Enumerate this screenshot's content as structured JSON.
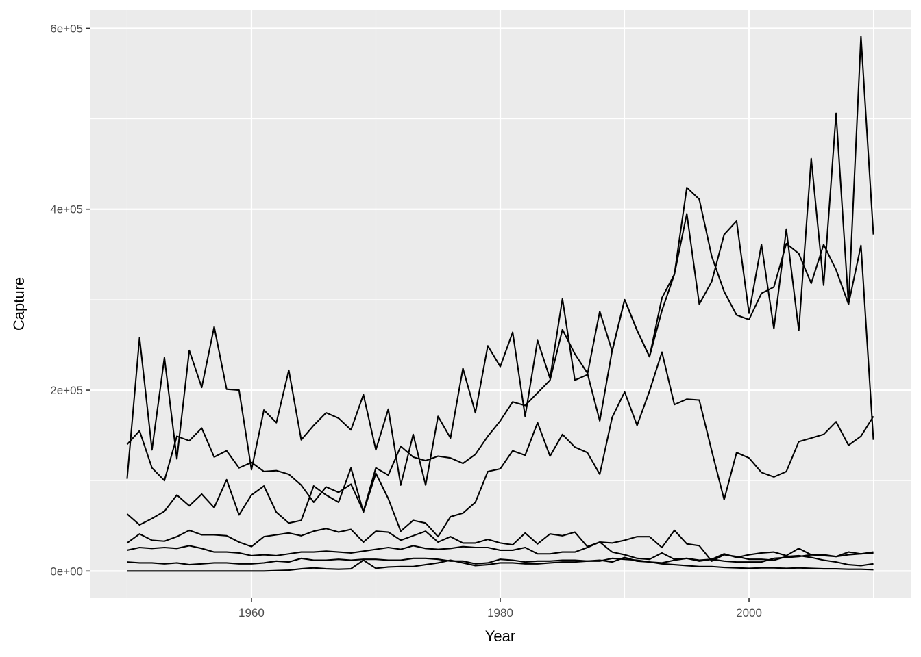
{
  "chart_data": {
    "type": "line",
    "title": "",
    "xlabel": "Year",
    "ylabel": "Capture",
    "xlim": [
      1947,
      2013
    ],
    "ylim": [
      -30000,
      620000
    ],
    "x_ticks": [
      {
        "value": 1960,
        "label": "1960"
      },
      {
        "value": 1980,
        "label": "1980"
      },
      {
        "value": 2000,
        "label": "2000"
      }
    ],
    "y_ticks": [
      {
        "value": 0,
        "label": "0e+00"
      },
      {
        "value": 200000,
        "label": "2e+05"
      },
      {
        "value": 400000,
        "label": "4e+05"
      },
      {
        "value": 600000,
        "label": "6e+05"
      }
    ],
    "grid": true,
    "legend": "none",
    "colors": {
      "panel": "#ebebeb",
      "grid": "#ffffff",
      "line": "#000000"
    },
    "x": [
      1950,
      1951,
      1952,
      1953,
      1954,
      1955,
      1956,
      1957,
      1958,
      1959,
      1960,
      1961,
      1962,
      1963,
      1964,
      1965,
      1966,
      1967,
      1968,
      1969,
      1970,
      1971,
      1972,
      1973,
      1974,
      1975,
      1976,
      1977,
      1978,
      1979,
      1980,
      1981,
      1982,
      1983,
      1984,
      1985,
      1986,
      1987,
      1988,
      1989,
      1990,
      1991,
      1992,
      1993,
      1994,
      1995,
      1996,
      1997,
      1998,
      1999,
      2000,
      2001,
      2002,
      2003,
      2004,
      2005,
      2006,
      2007,
      2008,
      2009,
      2010
    ],
    "series": [
      {
        "values": [
          102000,
          258000,
          134000,
          236000,
          124000,
          244000,
          203000,
          270000,
          201000,
          200000,
          112000,
          178000,
          164000,
          222000,
          145000,
          161000,
          175000,
          169000,
          156000,
          195000,
          134000,
          179000,
          95000,
          151000,
          95000,
          171000,
          147000,
          224000,
          175000,
          249000,
          226000,
          264000,
          171000,
          255000,
          213000,
          301000,
          211000,
          217000,
          287000,
          243000,
          300000,
          266000,
          237000,
          302000,
          328000,
          395000,
          295000,
          320000,
          372000,
          387000,
          285000,
          361000,
          268000,
          378000,
          266000,
          456000,
          316000,
          506000,
          295000,
          591000,
          372000
        ]
      },
      {
        "values": [
          140000,
          155000,
          114000,
          100000,
          149000,
          144000,
          158000,
          126000,
          133000,
          114000,
          120000,
          110000,
          111000,
          107000,
          95000,
          76000,
          93000,
          87000,
          96000,
          66000,
          114000,
          106000,
          138000,
          126000,
          122000,
          127000,
          125000,
          119000,
          129000,
          149000,
          166000,
          187000,
          183000,
          197000,
          211000,
          267000,
          240000,
          219000,
          166000,
          244000,
          300000,
          266000,
          237000,
          288000,
          328000,
          424000,
          411000,
          348000,
          309000,
          283000,
          278000,
          307000,
          314000,
          362000,
          351000,
          318000,
          361000,
          333000,
          295000,
          360000,
          145000
        ]
      },
      {
        "values": [
          63000,
          51000,
          58000,
          66000,
          84000,
          72000,
          85000,
          70000,
          101000,
          62000,
          84000,
          94000,
          65000,
          53000,
          56000,
          94000,
          84000,
          76000,
          114000,
          65000,
          108000,
          80000,
          44000,
          56000,
          53000,
          38000,
          60000,
          64000,
          76000,
          110000,
          113000,
          133000,
          128000,
          164000,
          127000,
          151000,
          137000,
          131000,
          107000,
          170000,
          198000,
          161000,
          199000,
          242000,
          184000,
          190000,
          189000,
          133000,
          79000,
          131000,
          125000,
          109000,
          104000,
          110000,
          143000,
          147000,
          151000,
          165000,
          139000,
          149000,
          171000
        ]
      },
      {
        "values": [
          31000,
          41000,
          34000,
          33000,
          38000,
          45000,
          40000,
          40000,
          39000,
          32000,
          27000,
          38000,
          40000,
          42000,
          39000,
          44000,
          47000,
          43000,
          46000,
          32000,
          44000,
          43000,
          34000,
          39000,
          44000,
          32000,
          38000,
          31000,
          31000,
          35000,
          31000,
          29000,
          42000,
          30000,
          41000,
          39000,
          43000,
          27000,
          32000,
          21000,
          18000,
          14000,
          13000,
          20000,
          13000,
          14000,
          12000,
          13000,
          19000,
          15000,
          18000,
          20000,
          21000,
          17000,
          25000,
          18000,
          18000,
          16000,
          21000,
          19000,
          21000
        ]
      },
      {
        "values": [
          23000,
          26000,
          25000,
          26000,
          25000,
          28000,
          25000,
          21000,
          21000,
          20000,
          17000,
          18000,
          17000,
          19000,
          21000,
          21000,
          22000,
          21000,
          20000,
          22000,
          24000,
          26000,
          24000,
          28000,
          25000,
          24000,
          25000,
          27000,
          26000,
          26000,
          23000,
          23000,
          26000,
          19000,
          19000,
          21000,
          21000,
          26000,
          32000,
          31000,
          34000,
          38000,
          38000,
          26000,
          45000,
          30000,
          28000,
          11000,
          18000,
          16000,
          13000,
          13000,
          12000,
          16000,
          17000,
          15000,
          12000,
          10000,
          7000,
          6000,
          8000
        ]
      },
      {
        "values": [
          10000,
          9000,
          9000,
          8000,
          9000,
          7000,
          8000,
          9000,
          9000,
          8000,
          8000,
          9000,
          11000,
          10000,
          14000,
          12000,
          12000,
          13000,
          12000,
          13000,
          13000,
          12000,
          12000,
          14000,
          14000,
          13000,
          11000,
          11000,
          8000,
          9000,
          13000,
          12000,
          10000,
          11000,
          11000,
          12000,
          12000,
          11000,
          11000,
          14000,
          13000,
          12000,
          10000,
          9000,
          12000,
          14000,
          11000,
          13000,
          11000,
          10000,
          10000,
          10000,
          14000,
          15000,
          16000,
          18000,
          17000,
          16000,
          18000,
          19000,
          20000
        ]
      },
      {
        "values": [
          0,
          0,
          0,
          0,
          0,
          0,
          0,
          0,
          0,
          0,
          0,
          0,
          500,
          1000,
          2500,
          3500,
          2500,
          2000,
          2500,
          12000,
          3000,
          4500,
          5000,
          5000,
          7000,
          9000,
          12000,
          9000,
          6000,
          7000,
          9000,
          9000,
          8000,
          8000,
          9000,
          10000,
          10000,
          11000,
          12000,
          10000,
          15000,
          11000,
          10000,
          8000,
          7000,
          6000,
          5000,
          5000,
          4000,
          3500,
          3000,
          3500,
          3500,
          3000,
          3500,
          3000,
          2500,
          2500,
          2000,
          2000,
          1500
        ]
      }
    ]
  }
}
